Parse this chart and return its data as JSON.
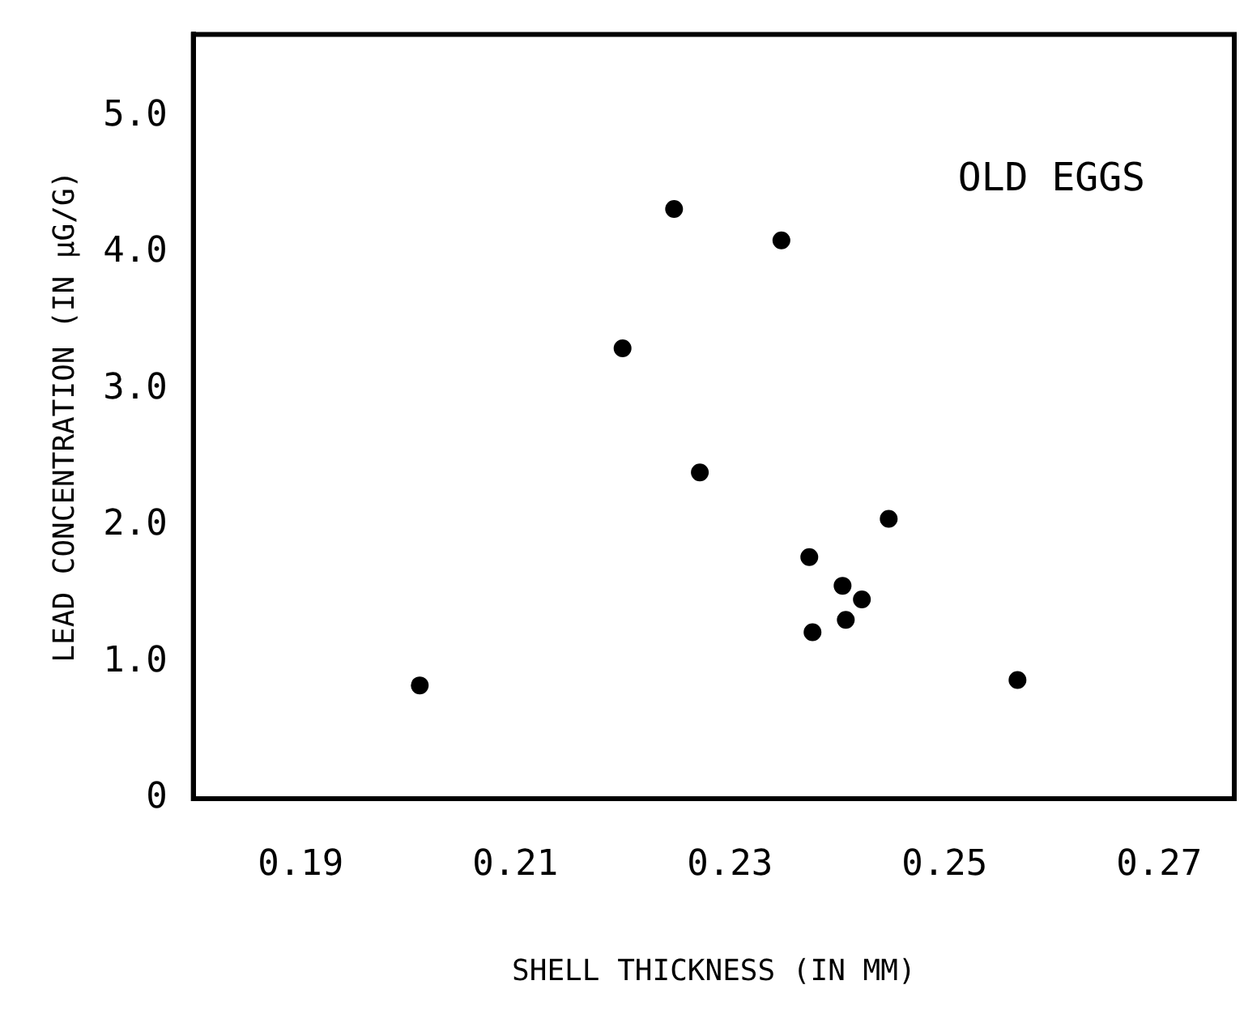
{
  "chart_data": {
    "type": "scatter",
    "xlabel": "SHELL THICKNESS (IN MM)",
    "ylabel": "LEAD CONCENTRATION (IN μG/G)",
    "annotations": [
      "OLD EGGS"
    ],
    "x": [
      0.2011,
      0.22,
      0.2248,
      0.2348,
      0.2272,
      0.2448,
      0.2374,
      0.2405,
      0.2423,
      0.2408,
      0.2377,
      0.2568
    ],
    "values": [
      0.83,
      3.3,
      4.32,
      4.09,
      2.39,
      2.05,
      1.77,
      1.56,
      1.46,
      1.31,
      1.22,
      0.87
    ],
    "color": "#000000",
    "marker": "circle",
    "grid": false,
    "legend": false,
    "xlim": [
      0.18,
      0.277
    ],
    "xticks": [
      0.19,
      0.21,
      0.23,
      0.25,
      0.27
    ],
    "ylim": [
      0,
      5.6
    ],
    "yticks": [
      0,
      {
        "value": 1,
        "label": "1.0"
      },
      {
        "value": 2,
        "label": "2.0"
      },
      {
        "value": 3,
        "label": "3.0"
      },
      {
        "value": 4,
        "label": "4.0"
      },
      {
        "value": 5,
        "label": "5.0"
      }
    ]
  }
}
